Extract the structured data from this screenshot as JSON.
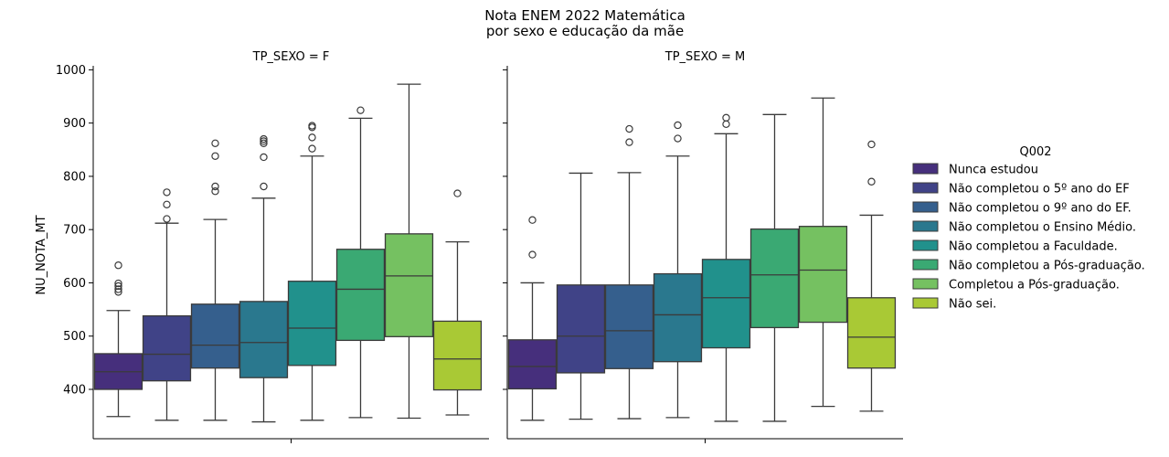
{
  "figure": {
    "title_line1": "Nota ENEM 2022 Matemática",
    "title_line2": "por sexo e educação da mãe"
  },
  "chart_data": {
    "type": "boxplot",
    "ylabel": "NU_NOTA_MT",
    "ylim": [
      330,
      1005
    ],
    "yticks": [
      400,
      500,
      600,
      700,
      800,
      900,
      1000
    ],
    "legend": {
      "title": "Q002",
      "placement": "right",
      "entries": [
        {
          "label": "Nunca estudou",
          "color": "#462f7c"
        },
        {
          "label": "Não completou o 5º ano do EF",
          "color": "#404387"
        },
        {
          "label": "Não completou o 9º ano do EF.",
          "color": "#355f8d"
        },
        {
          "label": "Não completou o Ensino Médio.",
          "color": "#2a788e"
        },
        {
          "label": "Não completou a Faculdade.",
          "color": "#21918c"
        },
        {
          "label": "Não completou a Pós-graduação.",
          "color": "#3aa973"
        },
        {
          "label": "Completou a Pós-graduação.",
          "color": "#75c161"
        },
        {
          "label": "Não sei.",
          "color": "#a9c935"
        }
      ]
    },
    "panels": [
      {
        "title": "TP_SEXO = F",
        "boxes": [
          {
            "whislo": 349,
            "q1": 400,
            "med": 433,
            "q3": 467,
            "whishi": 548,
            "fliers": [
              583,
              588,
              594,
              599,
              633
            ]
          },
          {
            "whislo": 342,
            "q1": 416,
            "med": 466,
            "q3": 538,
            "whishi": 712,
            "fliers": [
              720,
              747,
              770
            ]
          },
          {
            "whislo": 342,
            "q1": 440,
            "med": 483,
            "q3": 560,
            "whishi": 719,
            "fliers": [
              772,
              781,
              838,
              862
            ]
          },
          {
            "whislo": 339,
            "q1": 422,
            "med": 488,
            "q3": 565,
            "whishi": 759,
            "fliers": [
              781,
              836,
              862,
              866,
              870
            ]
          },
          {
            "whislo": 342,
            "q1": 445,
            "med": 515,
            "q3": 603,
            "whishi": 838,
            "fliers": [
              852,
              873,
              892,
              895
            ]
          },
          {
            "whislo": 347,
            "q1": 492,
            "med": 588,
            "q3": 663,
            "whishi": 909,
            "fliers": [
              924
            ]
          },
          {
            "whislo": 346,
            "q1": 499,
            "med": 613,
            "q3": 692,
            "whishi": 973,
            "fliers": []
          },
          {
            "whislo": 352,
            "q1": 399,
            "med": 457,
            "q3": 528,
            "whishi": 677,
            "fliers": [
              768
            ]
          }
        ]
      },
      {
        "title": "TP_SEXO = M",
        "boxes": [
          {
            "whislo": 342,
            "q1": 401,
            "med": 443,
            "q3": 493,
            "whishi": 600,
            "fliers": [
              653,
              718
            ]
          },
          {
            "whislo": 344,
            "q1": 431,
            "med": 500,
            "q3": 596,
            "whishi": 806,
            "fliers": []
          },
          {
            "whislo": 345,
            "q1": 439,
            "med": 510,
            "q3": 596,
            "whishi": 807,
            "fliers": [
              864,
              889
            ]
          },
          {
            "whislo": 347,
            "q1": 452,
            "med": 540,
            "q3": 617,
            "whishi": 838,
            "fliers": [
              871,
              896
            ]
          },
          {
            "whislo": 340,
            "q1": 478,
            "med": 572,
            "q3": 644,
            "whishi": 880,
            "fliers": [
              898,
              910
            ]
          },
          {
            "whislo": 340,
            "q1": 516,
            "med": 615,
            "q3": 701,
            "whishi": 916,
            "fliers": []
          },
          {
            "whislo": 368,
            "q1": 526,
            "med": 624,
            "q3": 706,
            "whishi": 947,
            "fliers": []
          },
          {
            "whislo": 359,
            "q1": 440,
            "med": 498,
            "q3": 572,
            "whishi": 727,
            "fliers": [
              790,
              860
            ]
          }
        ]
      }
    ]
  }
}
